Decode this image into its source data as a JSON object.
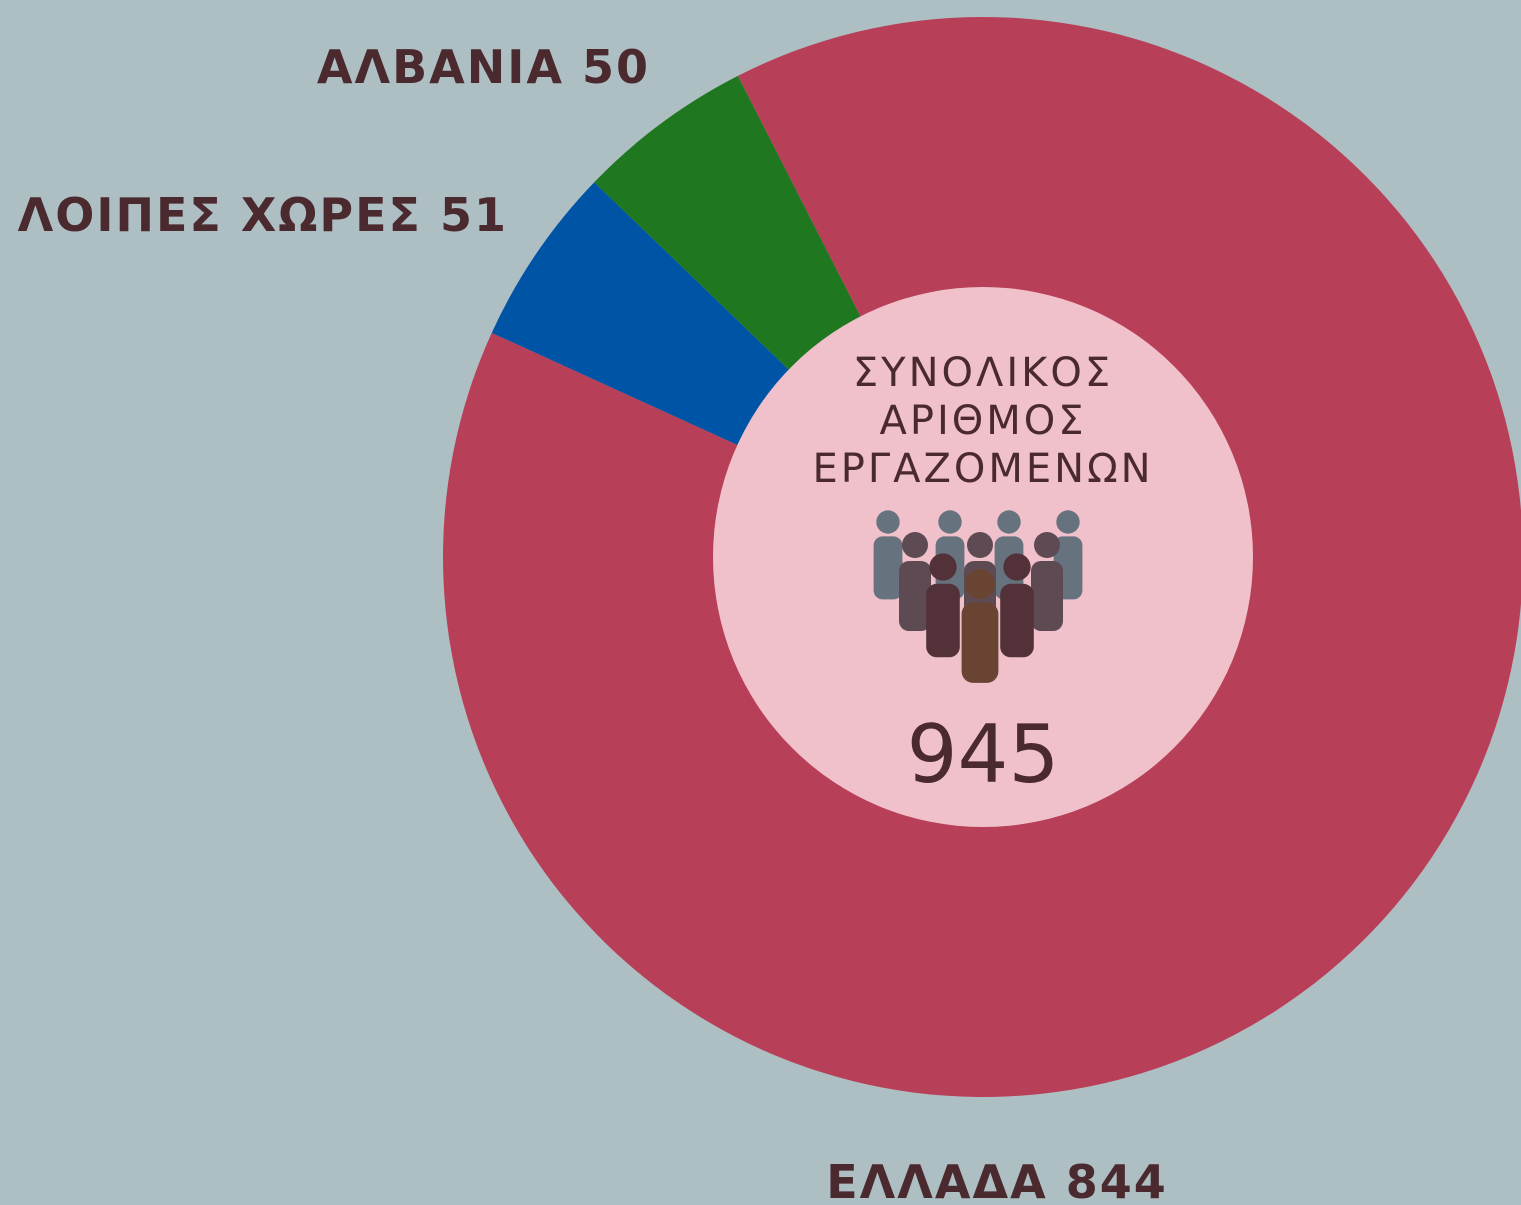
{
  "chart_data": {
    "type": "donut",
    "categories": [
      "ΕΛΛΑΔΑ",
      "ΛΟΙΠΕΣ ΧΩΡΕΣ",
      "ΑΛΒΑΝΙΑ"
    ],
    "values": [
      844,
      51,
      50
    ],
    "colors": [
      "#b83f58",
      "#0054a6",
      "#1f781f"
    ],
    "center_label": [
      "ΣΥΝΟΛΙΚΟΣ",
      "ΑΡΙΘΜΟΣ",
      "ΕΡΓΑΖΟΜΕΝΩΝ"
    ],
    "total": 945
  }
}
